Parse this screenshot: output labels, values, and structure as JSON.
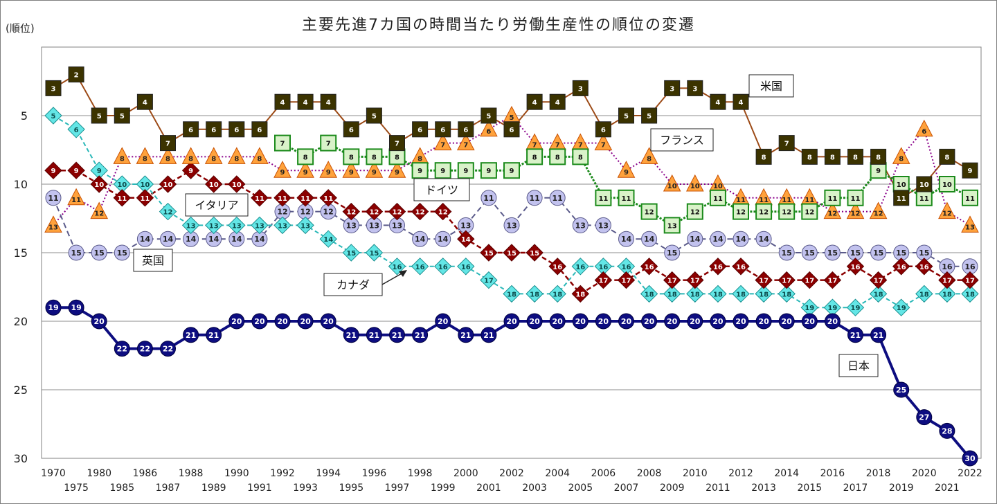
{
  "chart_data": {
    "type": "line",
    "title": "主要先進7カ国の時間当たり労働生産性の順位の変遷",
    "ylabel": "(順位)",
    "ylim": [
      0,
      30
    ],
    "yticks": [
      "5",
      "10",
      "15",
      "20",
      "25",
      "30"
    ],
    "categories": [
      "1970",
      "1975",
      "1980",
      "1985",
      "1986",
      "1987",
      "1988",
      "1989",
      "1990",
      "1991",
      "1992",
      "1993",
      "1994",
      "1995",
      "1996",
      "1997",
      "1998",
      "1999",
      "2000",
      "2001",
      "2002",
      "2003",
      "2004",
      "2005",
      "2006",
      "2007",
      "2008",
      "2009",
      "2010",
      "2011",
      "2012",
      "2013",
      "2014",
      "2015",
      "2016",
      "2017",
      "2018",
      "2019",
      "2020",
      "2021",
      "2022"
    ],
    "series": [
      {
        "name": "米国",
        "label": "米国",
        "color": "#9c4a16",
        "marker": "square",
        "markerFill": "#3b3300",
        "values": [
          3,
          2,
          5,
          5,
          4,
          7,
          6,
          6,
          6,
          6,
          4,
          4,
          4,
          6,
          5,
          7,
          6,
          6,
          6,
          5,
          6,
          4,
          4,
          3,
          6,
          5,
          5,
          3,
          3,
          4,
          4,
          8,
          7,
          8,
          8,
          8,
          8,
          11,
          10,
          8,
          9
        ]
      },
      {
        "name": "フランス",
        "label": "フランス",
        "color": "#8a008a",
        "marker": "triangle",
        "markerFill": "#ffa23c",
        "values": [
          13,
          11,
          12,
          8,
          8,
          8,
          8,
          8,
          8,
          8,
          9,
          9,
          9,
          9,
          9,
          9,
          8,
          7,
          7,
          6,
          5,
          7,
          7,
          7,
          7,
          9,
          8,
          10,
          10,
          10,
          11,
          11,
          11,
          11,
          12,
          12,
          12,
          8,
          6,
          12,
          13
        ]
      },
      {
        "name": "ドイツ",
        "label": "ドイツ",
        "color": "#1b8a1b",
        "marker": "square-open",
        "markerFill": "#d9f2c9",
        "values": [
          null,
          null,
          null,
          null,
          null,
          null,
          null,
          null,
          null,
          null,
          7,
          8,
          7,
          8,
          8,
          8,
          9,
          9,
          9,
          9,
          9,
          8,
          8,
          8,
          11,
          11,
          12,
          13,
          12,
          11,
          12,
          12,
          12,
          12,
          11,
          11,
          9,
          10,
          11,
          10,
          11
        ]
      },
      {
        "name": "イタリア",
        "label": "イタリア",
        "color": "#8b0000",
        "marker": "diamond",
        "markerFill": "#8b0000",
        "values": [
          9,
          9,
          10,
          11,
          11,
          10,
          9,
          10,
          10,
          11,
          11,
          11,
          11,
          12,
          12,
          12,
          12,
          12,
          14,
          15,
          15,
          15,
          16,
          18,
          17,
          17,
          16,
          17,
          17,
          16,
          16,
          17,
          17,
          17,
          17,
          16,
          17,
          16,
          16,
          17,
          17
        ]
      },
      {
        "name": "英国",
        "label": "英国",
        "color": "#5a5a8a",
        "marker": "circle",
        "markerFill": "#c2c2ee",
        "values": [
          11,
          15,
          15,
          15,
          14,
          14,
          14,
          14,
          14,
          14,
          12,
          12,
          12,
          13,
          13,
          13,
          14,
          14,
          13,
          11,
          13,
          11,
          11,
          13,
          13,
          14,
          14,
          15,
          14,
          14,
          14,
          14,
          15,
          15,
          15,
          15,
          15,
          15,
          15,
          16,
          16
        ]
      },
      {
        "name": "カナダ",
        "label": "カナダ",
        "color": "#2ab8b8",
        "marker": "diamond-light",
        "markerFill": "#63e6e6",
        "values": [
          5,
          6,
          9,
          10,
          10,
          12,
          13,
          13,
          13,
          13,
          13,
          13,
          14,
          15,
          15,
          16,
          16,
          16,
          16,
          17,
          18,
          18,
          18,
          16,
          16,
          16,
          18,
          18,
          18,
          18,
          18,
          18,
          18,
          19,
          19,
          19,
          18,
          19,
          18,
          18,
          18
        ]
      },
      {
        "name": "日本",
        "label": "日本",
        "color": "#0d0d80",
        "marker": "circle-bold",
        "markerFill": "#0d0d80",
        "values": [
          19,
          19,
          20,
          22,
          22,
          22,
          21,
          21,
          20,
          20,
          20,
          20,
          20,
          21,
          21,
          21,
          21,
          20,
          21,
          21,
          20,
          20,
          20,
          20,
          20,
          20,
          20,
          20,
          20,
          20,
          20,
          20,
          20,
          20,
          20,
          21,
          21,
          25,
          27,
          28,
          30
        ]
      }
    ]
  }
}
